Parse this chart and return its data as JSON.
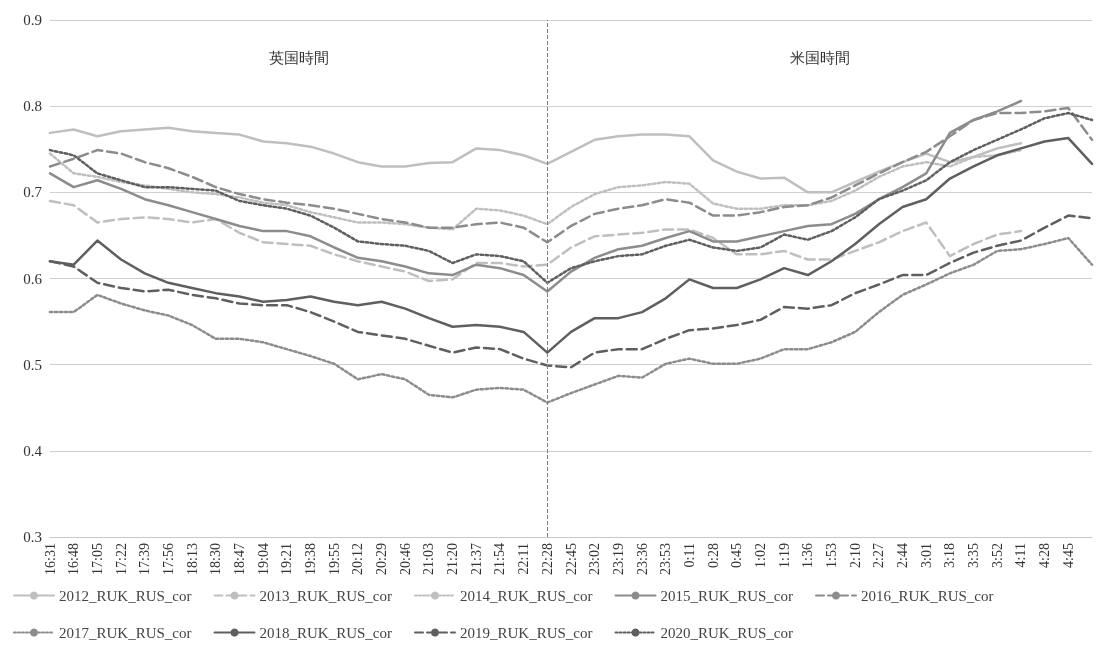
{
  "chart_data": {
    "type": "line",
    "categories": [
      "16:31",
      "16:48",
      "17:05",
      "17:22",
      "17:39",
      "17:56",
      "18:13",
      "18:30",
      "18:47",
      "19:04",
      "19:21",
      "19:38",
      "19:55",
      "20:12",
      "20:29",
      "20:46",
      "21:03",
      "21:20",
      "21:37",
      "21:54",
      "22:11",
      "22:28",
      "22:45",
      "23:02",
      "23:19",
      "23:36",
      "23:53",
      "0:11",
      "0:28",
      "0:45",
      "1:02",
      "1:19",
      "1:36",
      "1:53",
      "2:10",
      "2:27",
      "2:44",
      "3:01",
      "3:18",
      "3:35",
      "3:52",
      "4:11",
      "4:28",
      "4:45",
      null
    ],
    "series": [
      {
        "name": "2012_RUK_RUS_cor",
        "color": "#bfbfbf",
        "line_style": "solid",
        "values": [
          0.769,
          0.773,
          0.765,
          0.771,
          0.773,
          0.775,
          0.771,
          0.769,
          0.767,
          0.759,
          0.757,
          0.753,
          0.745,
          0.735,
          0.73,
          0.73,
          0.734,
          0.735,
          0.751,
          0.749,
          0.743,
          0.733,
          0.747,
          0.761,
          0.765,
          0.767,
          0.767,
          0.765,
          0.737,
          0.724,
          0.716,
          0.717,
          0.7,
          0.7,
          0.712,
          0.724,
          0.735,
          0.745,
          0.735,
          0.741,
          0.751,
          0.757,
          null,
          null,
          null
        ]
      },
      {
        "name": "2013_RUK_RUS_cor",
        "color": "#bfbfbf",
        "line_style": "dashed",
        "values": [
          0.69,
          0.685,
          0.665,
          0.669,
          0.671,
          0.669,
          0.665,
          0.669,
          0.653,
          0.642,
          0.64,
          0.638,
          0.628,
          0.62,
          0.614,
          0.608,
          0.597,
          0.599,
          0.618,
          0.618,
          0.614,
          0.616,
          0.636,
          0.649,
          0.651,
          0.653,
          0.657,
          0.657,
          0.647,
          0.628,
          0.628,
          0.632,
          0.622,
          0.622,
          0.632,
          0.642,
          0.655,
          0.665,
          0.626,
          0.64,
          0.651,
          0.655,
          null,
          null,
          null
        ]
      },
      {
        "name": "2014_RUK_RUS_cor",
        "color": "#bfbfbf",
        "line_style": "dotted",
        "values": [
          0.745,
          0.722,
          0.718,
          0.712,
          0.708,
          0.704,
          0.7,
          0.698,
          0.694,
          0.688,
          0.685,
          0.677,
          0.671,
          0.665,
          0.665,
          0.663,
          0.659,
          0.657,
          0.681,
          0.679,
          0.673,
          0.663,
          0.683,
          0.698,
          0.706,
          0.708,
          0.712,
          0.71,
          0.687,
          0.681,
          0.681,
          0.685,
          0.685,
          0.69,
          0.702,
          0.718,
          0.73,
          0.735,
          0.73,
          0.741,
          0.743,
          0.749,
          null,
          null,
          null
        ]
      },
      {
        "name": "2015_RUK_RUS_cor",
        "color": "#8c8c8c",
        "line_style": "solid",
        "values": [
          0.722,
          0.706,
          0.714,
          0.704,
          0.692,
          0.685,
          0.677,
          0.669,
          0.661,
          0.655,
          0.655,
          0.649,
          0.636,
          0.624,
          0.62,
          0.614,
          0.606,
          0.604,
          0.616,
          0.612,
          0.604,
          0.585,
          0.608,
          0.624,
          0.634,
          0.638,
          0.647,
          0.655,
          0.643,
          0.643,
          0.649,
          0.655,
          0.661,
          0.663,
          0.675,
          0.692,
          0.706,
          0.722,
          0.769,
          0.784,
          0.794,
          0.806,
          null,
          null,
          null
        ]
      },
      {
        "name": "2016_RUK_RUS_cor",
        "color": "#8c8c8c",
        "line_style": "dashed",
        "values": [
          0.73,
          0.739,
          0.749,
          0.745,
          0.735,
          0.728,
          0.718,
          0.706,
          0.698,
          0.692,
          0.688,
          0.685,
          0.681,
          0.675,
          0.669,
          0.665,
          0.659,
          0.659,
          0.663,
          0.665,
          0.659,
          0.642,
          0.661,
          0.675,
          0.681,
          0.685,
          0.692,
          0.688,
          0.673,
          0.673,
          0.677,
          0.683,
          0.685,
          0.694,
          0.708,
          0.722,
          0.735,
          0.747,
          0.765,
          0.784,
          0.792,
          0.792,
          0.794,
          0.798,
          0.761
        ]
      },
      {
        "name": "2017_RUK_RUS_cor",
        "color": "#8c8c8c",
        "line_style": "dotted",
        "values": [
          0.561,
          0.561,
          0.581,
          0.571,
          0.563,
          0.557,
          0.546,
          0.53,
          0.53,
          0.526,
          0.518,
          0.51,
          0.501,
          0.483,
          0.489,
          0.483,
          0.465,
          0.462,
          0.471,
          0.473,
          0.471,
          0.456,
          0.467,
          0.477,
          0.487,
          0.485,
          0.501,
          0.507,
          0.501,
          0.501,
          0.507,
          0.518,
          0.518,
          0.526,
          0.538,
          0.561,
          0.581,
          0.593,
          0.606,
          0.616,
          0.632,
          0.634,
          0.64,
          0.647,
          0.616
        ]
      },
      {
        "name": "2018_RUK_RUS_cor",
        "color": "#5f5f5f",
        "line_style": "solid",
        "values": [
          0.62,
          0.616,
          0.644,
          0.622,
          0.606,
          0.595,
          0.589,
          0.583,
          0.579,
          0.573,
          0.575,
          0.579,
          0.573,
          0.569,
          0.573,
          0.565,
          0.554,
          0.544,
          0.546,
          0.544,
          0.538,
          0.514,
          0.538,
          0.554,
          0.554,
          0.561,
          0.577,
          0.599,
          0.589,
          0.589,
          0.599,
          0.612,
          0.604,
          0.62,
          0.64,
          0.663,
          0.683,
          0.692,
          0.716,
          0.73,
          0.743,
          0.751,
          0.759,
          0.763,
          0.733
        ]
      },
      {
        "name": "2019_RUK_RUS_cor",
        "color": "#5f5f5f",
        "line_style": "dashed",
        "values": [
          0.62,
          0.614,
          0.595,
          0.589,
          0.585,
          0.587,
          0.581,
          0.577,
          0.571,
          0.569,
          0.569,
          0.561,
          0.55,
          0.538,
          0.534,
          0.53,
          0.522,
          0.514,
          0.52,
          0.518,
          0.507,
          0.499,
          0.497,
          0.514,
          0.518,
          0.518,
          0.53,
          0.54,
          0.542,
          0.546,
          0.552,
          0.567,
          0.565,
          0.569,
          0.583,
          0.593,
          0.604,
          0.604,
          0.618,
          0.63,
          0.638,
          0.644,
          0.659,
          0.673,
          0.67
        ]
      },
      {
        "name": "2020_RUK_RUS_cor",
        "color": "#5f5f5f",
        "line_style": "dotted",
        "values": [
          0.749,
          0.743,
          0.722,
          0.714,
          0.706,
          0.706,
          0.704,
          0.702,
          0.69,
          0.685,
          0.681,
          0.673,
          0.659,
          0.643,
          0.64,
          0.638,
          0.632,
          0.618,
          0.628,
          0.626,
          0.62,
          0.595,
          0.612,
          0.62,
          0.626,
          0.628,
          0.638,
          0.645,
          0.636,
          0.632,
          0.636,
          0.651,
          0.645,
          0.655,
          0.671,
          0.692,
          0.702,
          0.714,
          0.735,
          0.749,
          0.761,
          0.773,
          0.786,
          0.792,
          0.784
        ]
      }
    ],
    "ylim": [
      0.3,
      0.9
    ],
    "yticks": [
      0.3,
      0.4,
      0.5,
      0.6,
      0.7,
      0.8,
      0.9
    ],
    "grid": "y",
    "legend": "bottom",
    "marker": "none",
    "ref_lines": [
      {
        "axis": "x",
        "value": "22:28",
        "color": "#808080",
        "line_style": "dashed"
      }
    ],
    "annotations": [
      "英国時間",
      "米国時間"
    ]
  }
}
